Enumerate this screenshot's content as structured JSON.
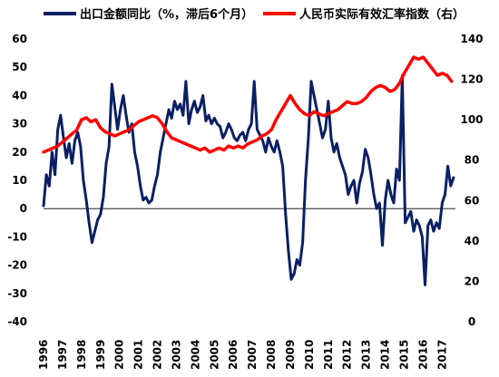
{
  "chart_data": {
    "type": "line",
    "x_tick_labels": [
      "1996",
      "1997",
      "1998",
      "1999",
      "2000",
      "2001",
      "2002",
      "2003",
      "2004",
      "2005",
      "2006",
      "2007",
      "2008",
      "2009",
      "2010",
      "2011",
      "2012",
      "2013",
      "2014",
      "2015",
      "2016",
      "2017"
    ],
    "left_axis": {
      "ylim": [
        -40,
        60
      ],
      "ticks": [
        -40,
        -30,
        -20,
        -10,
        0,
        10,
        20,
        30,
        40,
        50,
        60
      ]
    },
    "right_axis": {
      "ylim": [
        0,
        140
      ],
      "ticks": [
        0,
        20,
        40,
        60,
        80,
        100,
        120,
        140
      ]
    },
    "grid": false,
    "legend_position": "top",
    "series": [
      {
        "name": "出口金额同比（%，滞后6个月）",
        "axis": "left",
        "color": "#0b1f64",
        "points": [
          [
            1996.0,
            1
          ],
          [
            1996.15,
            12
          ],
          [
            1996.3,
            8
          ],
          [
            1996.45,
            20
          ],
          [
            1996.6,
            12
          ],
          [
            1996.75,
            28
          ],
          [
            1996.9,
            33
          ],
          [
            1997.05,
            25
          ],
          [
            1997.2,
            18
          ],
          [
            1997.35,
            23
          ],
          [
            1997.5,
            16
          ],
          [
            1997.65,
            24
          ],
          [
            1997.8,
            27
          ],
          [
            1997.95,
            22
          ],
          [
            1998.1,
            10
          ],
          [
            1998.25,
            3
          ],
          [
            1998.4,
            -5
          ],
          [
            1998.55,
            -12
          ],
          [
            1998.7,
            -8
          ],
          [
            1998.85,
            -4
          ],
          [
            1999.0,
            -2
          ],
          [
            1999.15,
            4
          ],
          [
            1999.3,
            16
          ],
          [
            1999.45,
            22
          ],
          [
            1999.6,
            44
          ],
          [
            1999.75,
            36
          ],
          [
            1999.9,
            28
          ],
          [
            2000.05,
            35
          ],
          [
            2000.2,
            40
          ],
          [
            2000.35,
            33
          ],
          [
            2000.5,
            27
          ],
          [
            2000.65,
            30
          ],
          [
            2000.8,
            20
          ],
          [
            2000.95,
            15
          ],
          [
            2001.1,
            8
          ],
          [
            2001.25,
            3
          ],
          [
            2001.4,
            4
          ],
          [
            2001.55,
            2
          ],
          [
            2001.7,
            3
          ],
          [
            2001.85,
            8
          ],
          [
            2002.0,
            12
          ],
          [
            2002.15,
            20
          ],
          [
            2002.3,
            25
          ],
          [
            2002.45,
            30
          ],
          [
            2002.6,
            35
          ],
          [
            2002.75,
            32
          ],
          [
            2002.9,
            38
          ],
          [
            2003.05,
            35
          ],
          [
            2003.2,
            37
          ],
          [
            2003.35,
            33
          ],
          [
            2003.5,
            45
          ],
          [
            2003.65,
            30
          ],
          [
            2003.8,
            35
          ],
          [
            2003.95,
            38
          ],
          [
            2004.1,
            34
          ],
          [
            2004.25,
            36
          ],
          [
            2004.4,
            40
          ],
          [
            2004.55,
            31
          ],
          [
            2004.7,
            33
          ],
          [
            2004.85,
            30
          ],
          [
            2005.0,
            32
          ],
          [
            2005.15,
            30
          ],
          [
            2005.3,
            29
          ],
          [
            2005.45,
            25
          ],
          [
            2005.6,
            27
          ],
          [
            2005.75,
            30
          ],
          [
            2005.9,
            28
          ],
          [
            2006.05,
            25
          ],
          [
            2006.2,
            24
          ],
          [
            2006.35,
            26
          ],
          [
            2006.5,
            27
          ],
          [
            2006.65,
            24
          ],
          [
            2006.8,
            28
          ],
          [
            2006.95,
            30
          ],
          [
            2007.1,
            45
          ],
          [
            2007.25,
            28
          ],
          [
            2007.4,
            26
          ],
          [
            2007.55,
            24
          ],
          [
            2007.7,
            20
          ],
          [
            2007.85,
            25
          ],
          [
            2008.0,
            22
          ],
          [
            2008.15,
            20
          ],
          [
            2008.3,
            24
          ],
          [
            2008.45,
            20
          ],
          [
            2008.6,
            15
          ],
          [
            2008.75,
            -2
          ],
          [
            2008.9,
            -15
          ],
          [
            2009.05,
            -25
          ],
          [
            2009.2,
            -23
          ],
          [
            2009.35,
            -18
          ],
          [
            2009.5,
            -20
          ],
          [
            2009.65,
            -12
          ],
          [
            2009.8,
            10
          ],
          [
            2009.95,
            25
          ],
          [
            2010.1,
            45
          ],
          [
            2010.25,
            40
          ],
          [
            2010.4,
            35
          ],
          [
            2010.55,
            30
          ],
          [
            2010.7,
            25
          ],
          [
            2010.85,
            28
          ],
          [
            2011.0,
            38
          ],
          [
            2011.15,
            25
          ],
          [
            2011.3,
            20
          ],
          [
            2011.45,
            23
          ],
          [
            2011.6,
            18
          ],
          [
            2011.75,
            15
          ],
          [
            2011.9,
            12
          ],
          [
            2012.05,
            5
          ],
          [
            2012.2,
            8
          ],
          [
            2012.35,
            10
          ],
          [
            2012.5,
            2
          ],
          [
            2012.65,
            9
          ],
          [
            2012.8,
            13
          ],
          [
            2012.95,
            21
          ],
          [
            2013.1,
            18
          ],
          [
            2013.25,
            12
          ],
          [
            2013.4,
            5
          ],
          [
            2013.55,
            0
          ],
          [
            2013.7,
            2
          ],
          [
            2013.85,
            -13
          ],
          [
            2014.0,
            3
          ],
          [
            2014.15,
            10
          ],
          [
            2014.3,
            5
          ],
          [
            2014.45,
            2
          ],
          [
            2014.6,
            14
          ],
          [
            2014.75,
            10
          ],
          [
            2014.9,
            47
          ],
          [
            2015.05,
            -5
          ],
          [
            2015.2,
            -3
          ],
          [
            2015.35,
            -1
          ],
          [
            2015.5,
            -8
          ],
          [
            2015.65,
            -4
          ],
          [
            2015.8,
            -6
          ],
          [
            2015.95,
            -10
          ],
          [
            2016.1,
            -27
          ],
          [
            2016.25,
            -6
          ],
          [
            2016.4,
            -4
          ],
          [
            2016.55,
            -8
          ],
          [
            2016.7,
            -5
          ],
          [
            2016.85,
            -7
          ],
          [
            2017.0,
            2
          ],
          [
            2017.15,
            5
          ],
          [
            2017.3,
            15
          ],
          [
            2017.45,
            8
          ],
          [
            2017.6,
            11
          ]
        ]
      },
      {
        "name": "人民币实际有效汇率指数（右）",
        "axis": "right",
        "color": "#ff0000",
        "points": [
          [
            1996.0,
            84
          ],
          [
            1996.25,
            85
          ],
          [
            1996.5,
            86
          ],
          [
            1996.75,
            87
          ],
          [
            1997.0,
            89
          ],
          [
            1997.25,
            91
          ],
          [
            1997.5,
            93
          ],
          [
            1997.75,
            95
          ],
          [
            1998.0,
            100
          ],
          [
            1998.25,
            101
          ],
          [
            1998.5,
            99
          ],
          [
            1998.75,
            100
          ],
          [
            1999.0,
            96
          ],
          [
            1999.25,
            94
          ],
          [
            1999.5,
            93
          ],
          [
            1999.75,
            92
          ],
          [
            2000.0,
            93
          ],
          [
            2000.25,
            94
          ],
          [
            2000.5,
            95
          ],
          [
            2000.75,
            97
          ],
          [
            2001.0,
            99
          ],
          [
            2001.25,
            100
          ],
          [
            2001.5,
            101
          ],
          [
            2001.75,
            102
          ],
          [
            2002.0,
            101
          ],
          [
            2002.25,
            98
          ],
          [
            2002.5,
            94
          ],
          [
            2002.75,
            91
          ],
          [
            2003.0,
            90
          ],
          [
            2003.25,
            89
          ],
          [
            2003.5,
            88
          ],
          [
            2003.75,
            87
          ],
          [
            2004.0,
            86
          ],
          [
            2004.25,
            85
          ],
          [
            2004.5,
            86
          ],
          [
            2004.75,
            84
          ],
          [
            2005.0,
            85
          ],
          [
            2005.25,
            86
          ],
          [
            2005.5,
            85
          ],
          [
            2005.75,
            87
          ],
          [
            2006.0,
            86
          ],
          [
            2006.25,
            87
          ],
          [
            2006.5,
            86
          ],
          [
            2006.75,
            88
          ],
          [
            2007.0,
            89
          ],
          [
            2007.25,
            90
          ],
          [
            2007.5,
            92
          ],
          [
            2007.75,
            93
          ],
          [
            2008.0,
            95
          ],
          [
            2008.25,
            100
          ],
          [
            2008.5,
            104
          ],
          [
            2008.75,
            108
          ],
          [
            2009.0,
            112
          ],
          [
            2009.25,
            108
          ],
          [
            2009.5,
            105
          ],
          [
            2009.75,
            103
          ],
          [
            2010.0,
            102
          ],
          [
            2010.25,
            104
          ],
          [
            2010.5,
            103
          ],
          [
            2010.75,
            102
          ],
          [
            2011.0,
            103
          ],
          [
            2011.25,
            104
          ],
          [
            2011.5,
            105
          ],
          [
            2011.75,
            107
          ],
          [
            2012.0,
            109
          ],
          [
            2012.25,
            108
          ],
          [
            2012.5,
            108
          ],
          [
            2012.75,
            109
          ],
          [
            2013.0,
            111
          ],
          [
            2013.25,
            114
          ],
          [
            2013.5,
            116
          ],
          [
            2013.75,
            117
          ],
          [
            2014.0,
            116
          ],
          [
            2014.25,
            114
          ],
          [
            2014.5,
            115
          ],
          [
            2014.75,
            118
          ],
          [
            2015.0,
            123
          ],
          [
            2015.25,
            127
          ],
          [
            2015.5,
            131
          ],
          [
            2015.75,
            130
          ],
          [
            2016.0,
            131
          ],
          [
            2016.25,
            128
          ],
          [
            2016.5,
            125
          ],
          [
            2016.75,
            122
          ],
          [
            2017.0,
            123
          ],
          [
            2017.25,
            122
          ],
          [
            2017.5,
            119
          ]
        ]
      }
    ]
  }
}
